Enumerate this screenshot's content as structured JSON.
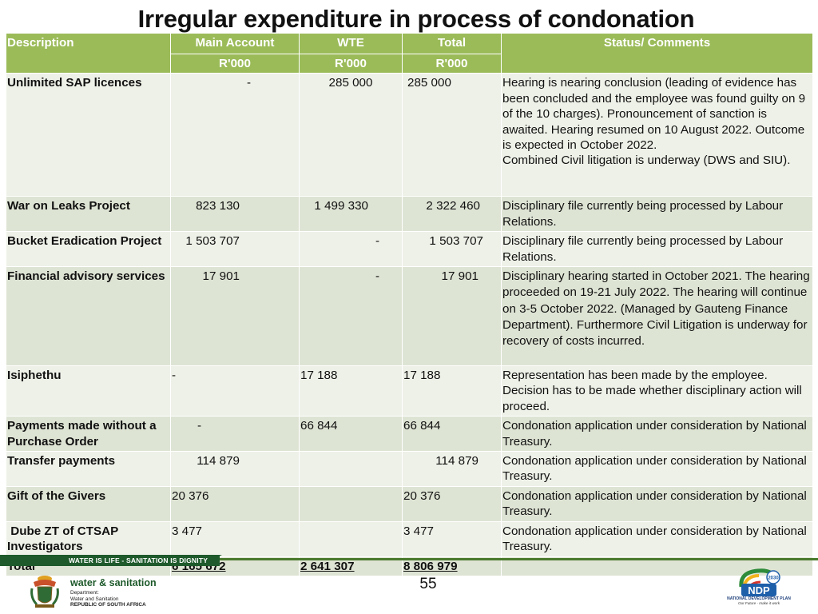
{
  "title": "Irregular expenditure in process of condonation",
  "headers": {
    "description": "Description",
    "main_account": "Main Account",
    "wte": "WTE",
    "total": "Total",
    "status": "Status/ Comments",
    "unit": "R'000"
  },
  "rows": [
    {
      "description": "Unlimited SAP licences",
      "main": "-",
      "wte": "285 000",
      "total": "285 000",
      "status": "Hearing is  nearing conclusion (leading of evidence has been concluded and the employee was found guilty on 9 of the 10 charges). Pronouncement of sanction is awaited. Hearing resumed on 10 August 2022. Outcome is expected in October 2022.\nCombined Civil litigation is underway (DWS and SIU)."
    },
    {
      "description": "War on Leaks Project",
      "main": "823 130",
      "wte": "1 499 330",
      "total": "2 322 460",
      "status": "Disciplinary file currently being processed by Labour Relations."
    },
    {
      "description": "Bucket Eradication Project",
      "main": "1 503 707",
      "wte": "-",
      "total": "1 503 707",
      "status": "Disciplinary file currently being processed by Labour Relations."
    },
    {
      "description": "Financial advisory services",
      "main": "17 901",
      "wte": "-",
      "total": "17 901",
      "status": "Disciplinary hearing started in October 2021. The hearing proceeded on 19-21 July 2022. The hearing will continue on 3-5 October 2022. (Managed by Gauteng Finance Department). Furthermore Civil Litigation is underway for recovery of costs incurred."
    },
    {
      "description": "Isiphethu",
      "main": "-",
      "wte": "17 188",
      "total": "17 188",
      "status": "Representation has been made by the employee. Decision has to be made whether disciplinary action will proceed."
    },
    {
      "description": "Payments made without a Purchase Order",
      "main": "-",
      "wte": "66 844",
      "total": "66 844",
      "status": "Condonation application under consideration by National Treasury."
    },
    {
      "description": "Transfer payments",
      "main": "114 879",
      "wte": "",
      "total": "114 879",
      "status": "Condonation application under consideration by National Treasury."
    },
    {
      "description": "Gift of the Givers",
      "main": "20 376",
      "wte": "",
      "total": "20 376",
      "status": "Condonation application under consideration by National Treasury."
    },
    {
      "description": " Dube ZT of CTSAP Investigators",
      "main": "3 477",
      "wte": "",
      "total": "3 477",
      "status": "Condonation application under consideration by National Treasury."
    },
    {
      "description": "Total",
      "main": "6 165 672",
      "wte": "2 641 307",
      "total": "8 806 979",
      "status": ""
    }
  ],
  "footer": {
    "slogan": "WATER IS LIFE - SANITATION IS DIGNITY",
    "page_number": "55",
    "dws_brand": "water & sanitation",
    "dws_sub": [
      "Department:",
      "Water and Sanitation",
      "REPUBLIC OF SOUTH AFRICA"
    ],
    "ndp_year": "2030",
    "ndp_acronym": "NDP",
    "ndp_name": "NATIONAL DEVELOPMENT PLAN",
    "ndp_tagline": "Our Future - make it work"
  },
  "colors": {
    "header_green": "#9bbb59",
    "row_light": "#eef1e8",
    "row_dark": "#dee4d4",
    "band_green": "#1e5a2b"
  }
}
